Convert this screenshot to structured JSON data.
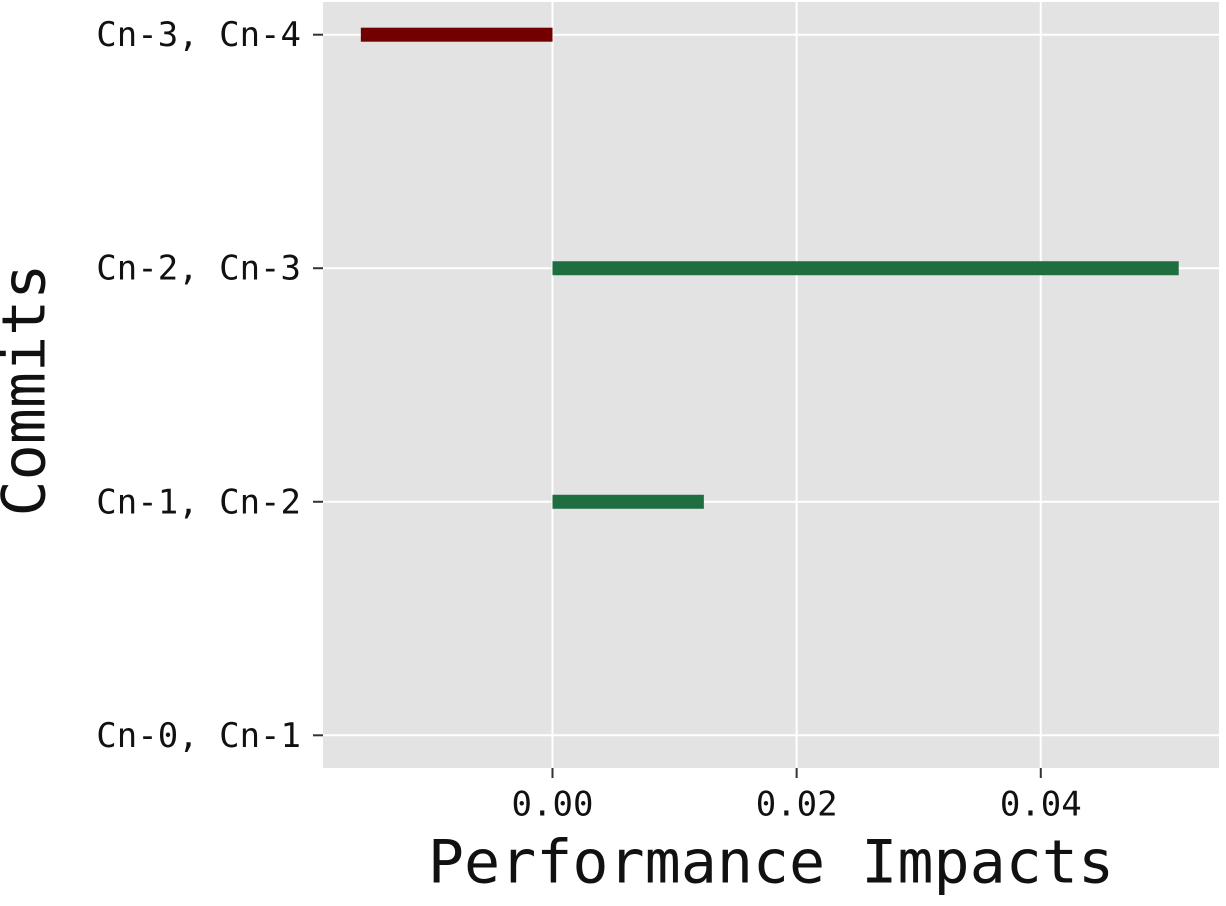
{
  "chart_data": {
    "type": "barh",
    "x_label": "Performance Impacts",
    "y_label": "Commits",
    "categories": [
      "Cn-0, Cn-1",
      "Cn-1, Cn-2",
      "Cn-2, Cn-3",
      "Cn-3, Cn-4"
    ],
    "values": [
      0,
      0.0124,
      0.0513,
      -0.0157
    ],
    "color_positive": "#1e6e40",
    "color_negative": "#730000",
    "xlim": [
      -0.0188,
      0.0546
    ],
    "xticks": [
      {
        "value": 0,
        "label": "0.00"
      },
      {
        "value": 0.02,
        "label": "0.02"
      },
      {
        "value": 0.04,
        "label": "0.04"
      }
    ],
    "grid": true
  }
}
